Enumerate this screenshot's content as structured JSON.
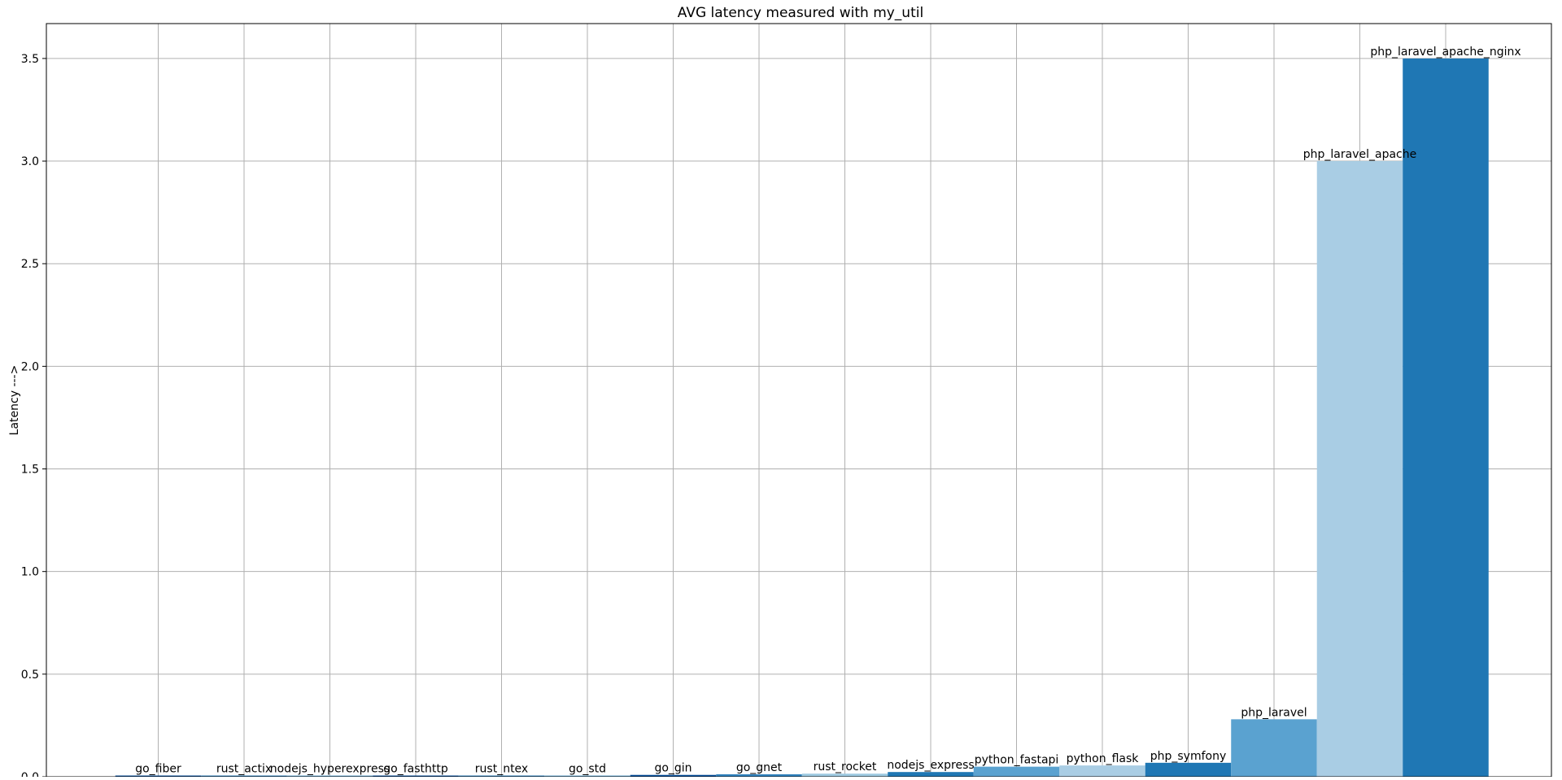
{
  "chart_data": {
    "type": "bar",
    "title": "AVG latency measured with my_util",
    "xlabel": "",
    "ylabel": "Latency --->",
    "ylim": [
      0,
      3.67
    ],
    "yticks": [
      0.0,
      0.5,
      1.0,
      1.5,
      2.0,
      2.5,
      3.0,
      3.5
    ],
    "ytick_labels": [
      "0.0",
      "0.5",
      "1.0",
      "1.5",
      "2.0",
      "2.5",
      "3.0",
      "3.5"
    ],
    "grid": true,
    "legend": "none",
    "categories": [
      "go_fiber",
      "rust_actix",
      "nodejs_hyperexpress",
      "go_fasthttp",
      "rust_ntex",
      "go_std",
      "go_gin",
      "go_gnet",
      "rust_rocket",
      "nodejs_express",
      "python_fastapi",
      "python_flask",
      "php_symfony",
      "php_laravel",
      "php_laravel_apache",
      "php_laravel_apache_nginx"
    ],
    "values": [
      0.004,
      0.003,
      0.003,
      0.004,
      0.004,
      0.002,
      0.009,
      0.012,
      0.015,
      0.023,
      0.049,
      0.055,
      0.068,
      0.28,
      3.0,
      3.5
    ],
    "colors": [
      "#08519c",
      "#3182bd",
      "#6baed6",
      "#08519c",
      "#3182bd",
      "#6baed6",
      "#08519c",
      "#3182bd",
      "#9ecae1",
      "#1f77b4",
      "#5aa2d0",
      "#a9cde4",
      "#1f77b4",
      "#5aa2d0",
      "#a9cde4",
      "#1f77b4"
    ]
  }
}
